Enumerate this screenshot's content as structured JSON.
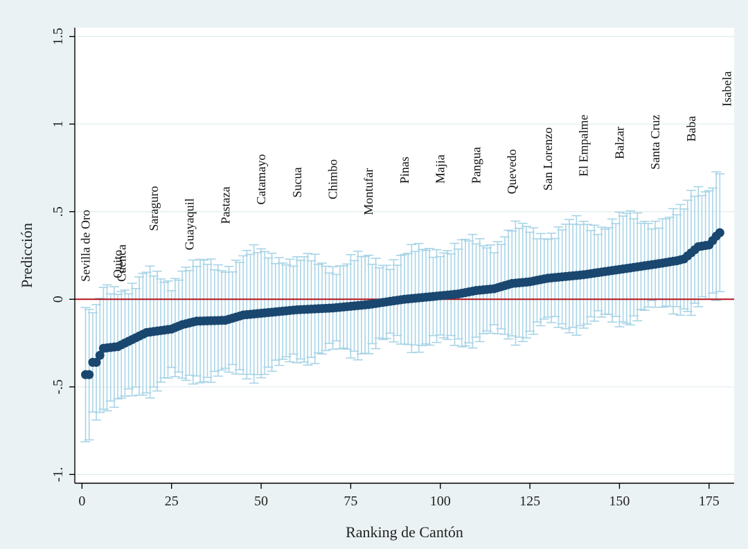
{
  "chart_data": {
    "type": "scatter",
    "title": "",
    "xlabel": "Ranking de Cantón",
    "ylabel": "Predicción",
    "xlim": [
      -2,
      182
    ],
    "ylim": [
      -1.05,
      1.55
    ],
    "x_ticks": [
      0,
      25,
      50,
      75,
      100,
      125,
      150,
      175
    ],
    "x_tick_labels": [
      "0",
      "25",
      "50",
      "75",
      "100",
      "125",
      "150",
      "175"
    ],
    "y_ticks": [
      -1,
      -0.5,
      0,
      0.5,
      1,
      1.5
    ],
    "y_tick_labels": [
      "-1.",
      "-.5",
      "0",
      ".5",
      "1",
      "1.5"
    ],
    "grid": true,
    "reference_line": {
      "y": 0,
      "color": "#b5121b"
    },
    "colors": {
      "background": "#eaf2f3",
      "plot_background": "#ffffff",
      "marker": "#1a476f",
      "error_bar": "#a8d4e6",
      "grid": "#e0ecee",
      "axis": "#000000"
    },
    "anchors": [
      [
        1,
        -0.43,
        0.38
      ],
      [
        2,
        -0.43,
        0.32
      ],
      [
        3,
        -0.36,
        0.27
      ],
      [
        4,
        -0.36,
        0.27
      ],
      [
        6,
        -0.28,
        0.33
      ],
      [
        10,
        -0.27,
        0.35
      ],
      [
        15,
        -0.22,
        0.3
      ],
      [
        18,
        -0.19,
        0.32
      ],
      [
        25,
        -0.17,
        0.28
      ],
      [
        28,
        -0.145,
        0.33
      ],
      [
        32,
        -0.125,
        0.3
      ],
      [
        40,
        -0.12,
        0.32
      ],
      [
        45,
        -0.09,
        0.33
      ],
      [
        55,
        -0.07,
        0.33
      ],
      [
        60,
        -0.06,
        0.27
      ],
      [
        70,
        -0.05,
        0.25
      ],
      [
        75,
        -0.04,
        0.26
      ],
      [
        80,
        -0.03,
        0.24
      ],
      [
        90,
        0,
        0.24
      ],
      [
        100,
        0.02,
        0.28
      ],
      [
        105,
        0.03,
        0.26
      ],
      [
        110,
        0.05,
        0.27
      ],
      [
        115,
        0.06,
        0.27
      ],
      [
        120,
        0.09,
        0.3
      ],
      [
        125,
        0.1,
        0.28
      ],
      [
        130,
        0.12,
        0.27
      ],
      [
        140,
        0.14,
        0.28
      ],
      [
        150,
        0.17,
        0.28
      ],
      [
        160,
        0.2,
        0.26
      ],
      [
        166,
        0.22,
        0.25
      ],
      [
        168,
        0.23,
        0.26
      ],
      [
        170,
        0.265,
        0.33
      ],
      [
        172,
        0.3,
        0.34
      ],
      [
        175,
        0.31,
        0.34
      ],
      [
        177,
        0.36,
        0.36
      ],
      [
        178,
        0.38,
        0.36
      ]
    ],
    "n_points": 178,
    "labels": [
      {
        "rank": 1,
        "text": "Sevilla de Oro",
        "y": 0.1
      },
      {
        "rank": 10,
        "text": "Quito",
        "y": 0.12
      },
      {
        "rank": 11,
        "text": "Cuenca",
        "y": 0.1
      },
      {
        "rank": 20,
        "text": "Saraguro",
        "y": 0.39
      },
      {
        "rank": 30,
        "text": "Guayaquil",
        "y": 0.28
      },
      {
        "rank": 40,
        "text": "Pastaza",
        "y": 0.43
      },
      {
        "rank": 50,
        "text": "Catamayo",
        "y": 0.54
      },
      {
        "rank": 60,
        "text": "Sucua",
        "y": 0.58
      },
      {
        "rank": 70,
        "text": "Chimbo",
        "y": 0.57
      },
      {
        "rank": 80,
        "text": "Montufar",
        "y": 0.48
      },
      {
        "rank": 90,
        "text": "Pinas",
        "y": 0.66
      },
      {
        "rank": 100,
        "text": "Majia",
        "y": 0.66
      },
      {
        "rank": 110,
        "text": "Pangua",
        "y": 0.66
      },
      {
        "rank": 120,
        "text": "Quevedo",
        "y": 0.6
      },
      {
        "rank": 130,
        "text": "San Lorenzo",
        "y": 0.62
      },
      {
        "rank": 140,
        "text": "El Empalme",
        "y": 0.7
      },
      {
        "rank": 150,
        "text": "Balzar",
        "y": 0.8
      },
      {
        "rank": 160,
        "text": "Santa Cruz",
        "y": 0.74
      },
      {
        "rank": 170,
        "text": "Baba",
        "y": 0.9
      },
      {
        "rank": 180,
        "text": "Isabela",
        "y": 1.1
      }
    ]
  }
}
